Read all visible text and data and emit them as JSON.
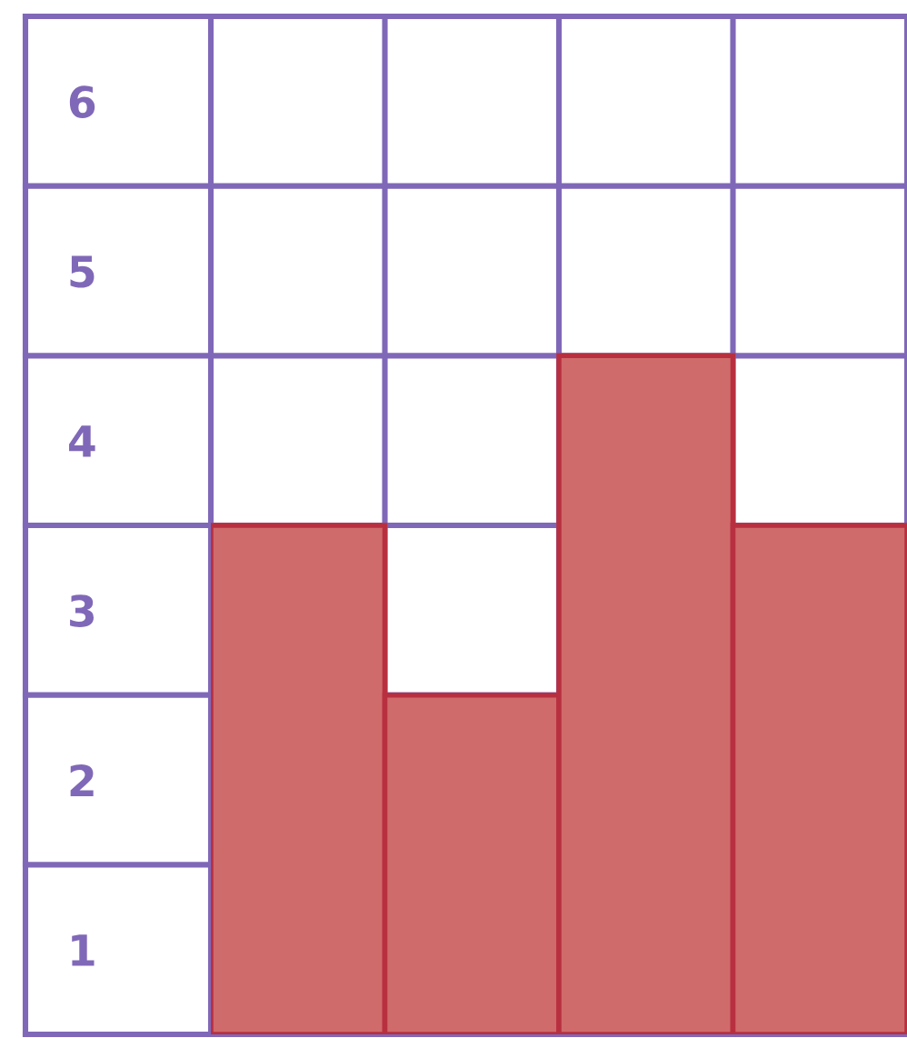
{
  "chart_data": {
    "type": "bar",
    "categories": [
      null,
      null,
      null,
      null
    ],
    "values": [
      3,
      2,
      4,
      3
    ],
    "color": "#d06b6b",
    "ylim": [
      0,
      6
    ],
    "yticks": [
      {
        "value": 0.5,
        "label": "1"
      },
      {
        "value": 1.5,
        "label": "2"
      },
      {
        "value": 2.5,
        "label": "3"
      },
      {
        "value": 3.5,
        "label": "4"
      },
      {
        "value": 4.5,
        "label": "5"
      },
      {
        "value": 5.5,
        "label": "6"
      }
    ],
    "grid": true
  }
}
